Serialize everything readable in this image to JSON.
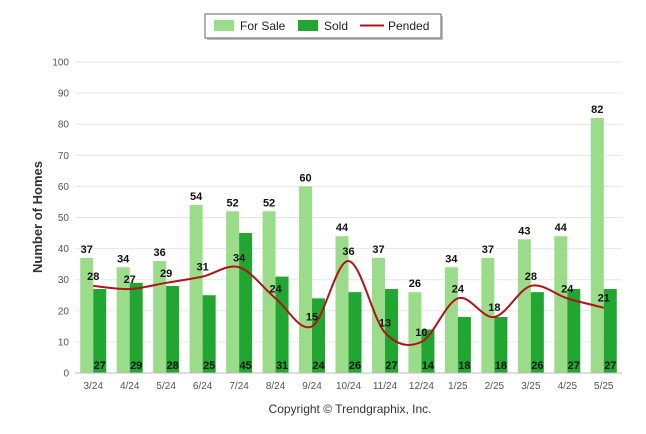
{
  "chart_data": {
    "type": "bar",
    "categories": [
      "3/24",
      "4/24",
      "5/24",
      "6/24",
      "7/24",
      "8/24",
      "9/24",
      "10/24",
      "11/24",
      "12/24",
      "1/25",
      "2/25",
      "3/25",
      "4/25",
      "5/25"
    ],
    "series": [
      {
        "name": "For Sale",
        "type": "bar",
        "color": "#9bdc8a",
        "values": [
          37,
          34,
          36,
          54,
          52,
          52,
          60,
          44,
          37,
          26,
          34,
          37,
          43,
          44,
          82
        ]
      },
      {
        "name": "Sold",
        "type": "bar",
        "color": "#21a631",
        "values": [
          27,
          29,
          28,
          25,
          45,
          31,
          24,
          26,
          27,
          14,
          18,
          18,
          26,
          27,
          27
        ]
      },
      {
        "name": "Pended",
        "type": "line",
        "color": "#b0141a",
        "values": [
          28,
          27,
          29,
          31,
          34,
          24,
          15,
          36,
          13,
          10,
          24,
          18,
          28,
          24,
          21
        ]
      }
    ],
    "xlabel": "",
    "ylabel": "Number of Homes",
    "ylim": [
      0,
      100
    ],
    "yticks": [
      0,
      10,
      20,
      30,
      40,
      50,
      60,
      70,
      80,
      90,
      100
    ],
    "grid": true,
    "legend": "top-center"
  },
  "footer": "Copyright © Trendgraphix, Inc."
}
